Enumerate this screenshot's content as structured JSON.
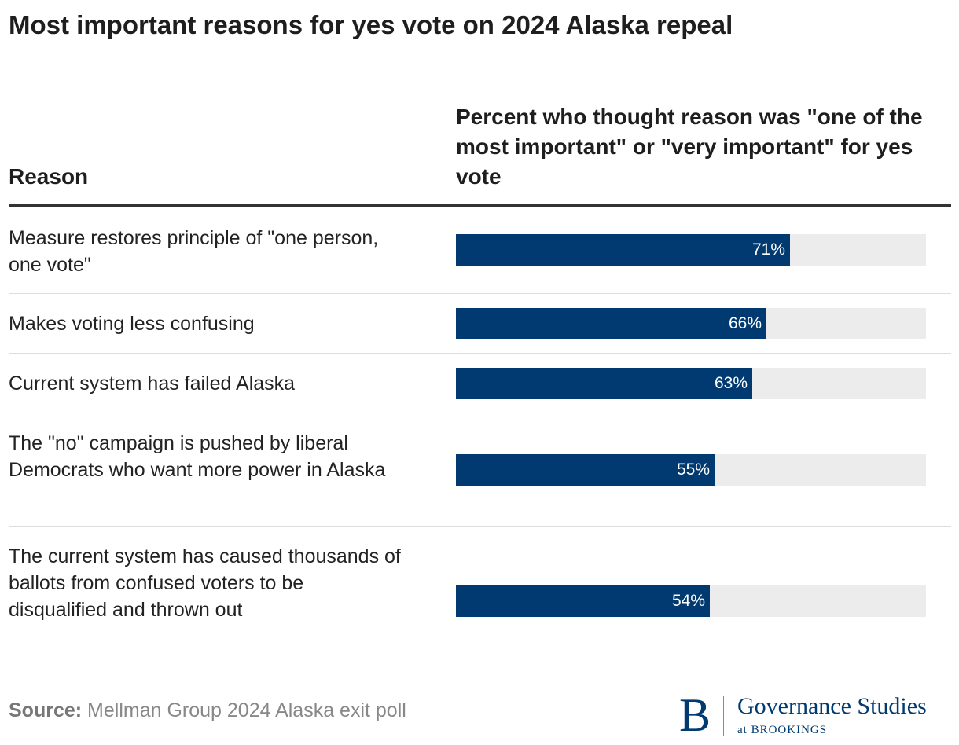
{
  "title": "Most important reasons for yes vote on 2024 Alaska repeal",
  "columns": {
    "reason": "Reason",
    "value": "Percent who thought reason was \"one of the most important\" or \"very important\" for yes vote"
  },
  "source": {
    "label": "Source:",
    "text": "Mellman Group 2024 Alaska exit poll"
  },
  "logo": {
    "mark": "B",
    "name": "Governance Studies",
    "sub": "at BROOKINGS"
  },
  "colors": {
    "bar": "#003a70",
    "track": "#ececec"
  },
  "chart_data": {
    "type": "bar",
    "orientation": "horizontal",
    "xlim": [
      0,
      100
    ],
    "unit": "%",
    "categories": [
      "Measure restores principle of \"one person, one vote\"",
      "Makes voting less confusing",
      "Current system has failed Alaska",
      "The \"no\" campaign is pushed by liberal Democrats who want more power in Alaska",
      "The current system has caused thousands of ballots from confused voters to be disqualified and thrown out"
    ],
    "values": [
      71,
      66,
      63,
      55,
      54
    ],
    "value_labels": [
      "71%",
      "66%",
      "63%",
      "55%",
      "54%"
    ]
  }
}
